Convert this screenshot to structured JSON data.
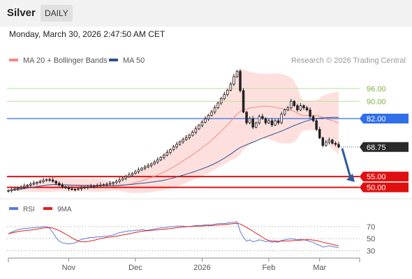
{
  "header": {
    "symbol": "Silver",
    "timeframe": "DAILY"
  },
  "datetime": "Monday, March 30, 2026 2:47:50 AM CET",
  "legend": [
    {
      "name": "MA 20 + Bollinger Bands",
      "color": "#f28b82"
    },
    {
      "name": "MA 50",
      "color": "#2f4f8f"
    }
  ],
  "copyright": "Research © 2026 Trading Central",
  "rsi_legend": [
    {
      "name": "RSI",
      "color": "#5b7bd5"
    },
    {
      "name": "9MA",
      "color": "#e02020"
    }
  ],
  "chart_data": {
    "type": "candlestick",
    "y_range": [
      45,
      106
    ],
    "x_labels": [
      "Nov",
      "Dec",
      "2026",
      "Feb",
      "Mar"
    ],
    "closes": [
      48.5,
      48.9,
      49.2,
      49.6,
      50.1,
      50.6,
      51.0,
      51.5,
      51.9,
      52.3,
      52.7,
      53.2,
      53.6,
      53.4,
      52.8,
      51.9,
      51.0,
      50.3,
      49.8,
      49.3,
      49.1,
      49.0,
      49.3,
      49.7,
      50.0,
      50.2,
      50.4,
      50.6,
      50.9,
      51.1,
      51.3,
      51.5,
      51.8,
      52.2,
      52.8,
      53.5,
      54.2,
      55.0,
      55.8,
      56.5,
      57.3,
      58.1,
      58.9,
      59.5,
      60.1,
      60.9,
      61.8,
      62.8,
      63.9,
      65.0,
      66.2,
      67.5,
      68.8,
      70.0,
      71.2,
      72.2,
      73.1,
      74.2,
      75.6,
      77.2,
      78.8,
      80.3,
      81.8,
      83.5,
      85.0,
      87.0,
      89.2,
      91.2,
      93.2,
      95.2,
      98.0,
      101.5,
      104.0,
      95.0,
      85.0,
      80.0,
      82.0,
      78.0,
      80.0,
      83.0,
      82.0,
      80.0,
      81.0,
      79.0,
      81.0,
      80.0,
      84.0,
      86.0,
      87.0,
      90.0,
      88.0,
      86.0,
      88.0,
      87.0,
      86.0,
      83.0,
      81.0,
      77.0,
      73.0,
      69.5,
      71.0,
      72.0,
      70.5,
      70.0,
      68.75
    ],
    "levels": [
      {
        "value": 96.0,
        "label": "96.00",
        "kind": "resistance",
        "color": "#b5e0a0"
      },
      {
        "value": 90.0,
        "label": "90.00",
        "kind": "resistance",
        "color": "#b5e0a0"
      },
      {
        "value": 82.0,
        "label": "82.00",
        "kind": "pivot",
        "color": "#2f6fe8"
      },
      {
        "value": 68.75,
        "label": "68.75",
        "kind": "last",
        "color": "#333333"
      },
      {
        "value": 55.0,
        "label": "55.00",
        "kind": "target",
        "color": "#e01010"
      },
      {
        "value": 50.0,
        "label": "50.00",
        "kind": "target",
        "color": "#e01010"
      }
    ],
    "rsi": {
      "ticks": [
        70,
        50,
        30
      ],
      "y_range": [
        20,
        85
      ],
      "values": [
        58,
        61,
        63,
        65,
        66,
        67,
        67,
        68,
        68,
        69,
        69,
        70,
        70,
        67,
        60,
        52,
        46,
        43,
        42,
        41,
        42,
        43,
        46,
        49,
        50,
        51,
        52,
        52,
        53,
        53,
        54,
        54,
        55,
        56,
        58,
        60,
        61,
        62,
        63,
        63,
        64,
        64,
        65,
        64,
        64,
        65,
        66,
        67,
        68,
        68,
        69,
        70,
        70,
        71,
        71,
        71,
        70,
        70,
        71,
        72,
        72,
        72,
        73,
        73,
        73,
        74,
        75,
        75,
        75,
        76,
        77,
        77,
        78,
        62,
        52,
        46,
        48,
        45,
        46,
        48,
        47,
        45,
        46,
        44,
        45,
        44,
        47,
        48,
        49,
        50,
        49,
        48,
        49,
        48,
        47,
        45,
        44,
        41,
        39,
        36,
        37,
        38,
        37,
        36,
        35
      ]
    }
  }
}
